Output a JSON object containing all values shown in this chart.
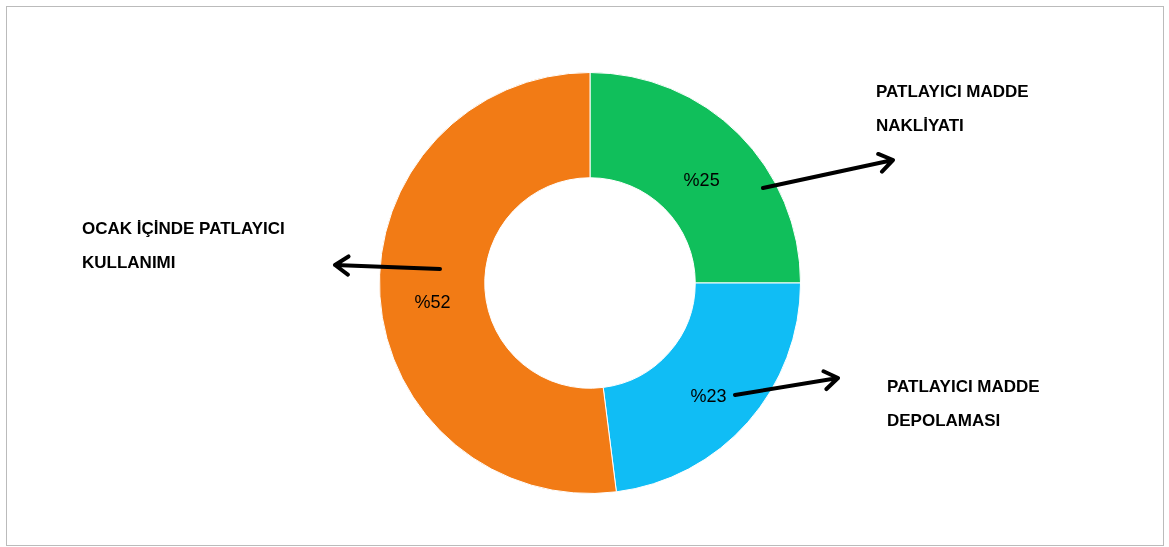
{
  "chart_data": {
    "type": "donut",
    "categories": [
      "PATLAYICI MADDE NAKLİYATI",
      "PATLAYICI MADDE DEPOLAMASI",
      "OCAK İÇİNDE PATLAYICI KULLANIMI"
    ],
    "values": [
      25,
      23,
      52
    ],
    "value_labels": [
      "%25",
      "%23",
      "%52"
    ],
    "colors": [
      "#10bf5b",
      "#10bdf5",
      "#f27b15"
    ],
    "legend": false
  }
}
